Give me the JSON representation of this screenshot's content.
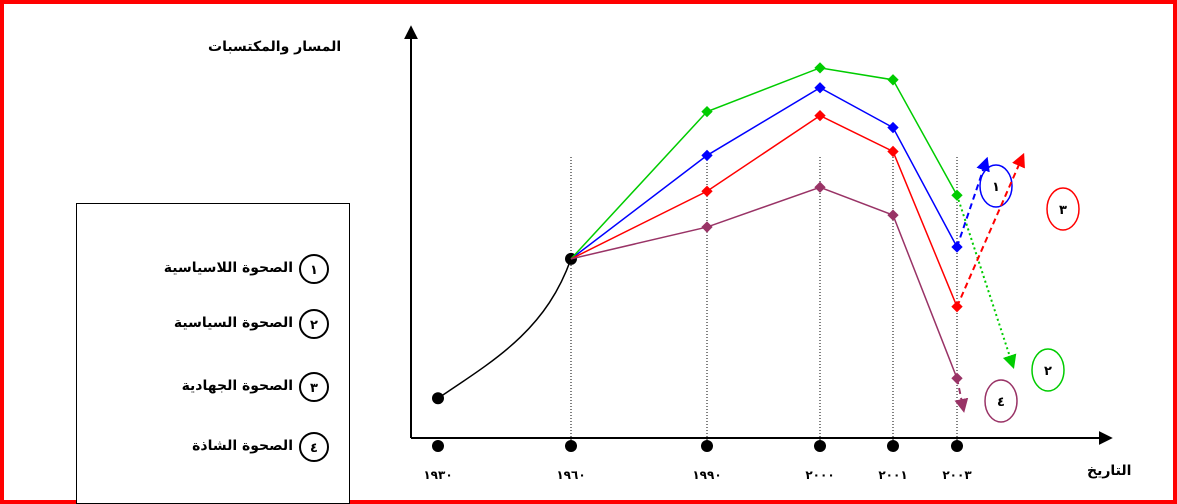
{
  "chart_data": {
    "type": "line",
    "ylabel": "المسار والمكتسبات",
    "xlabel": "التاريخ",
    "x_ticks": [
      "١٩٣٠",
      "١٩٦٠",
      "١٩٩٠",
      "٢٠٠٠",
      "٢٠٠١",
      "٢٠٠٣"
    ],
    "x_values": [
      1930,
      1960,
      1990,
      2000,
      2001,
      2003
    ],
    "ylim": [
      0,
      100
    ],
    "shared_start": [
      {
        "x": 1930,
        "y": 10
      },
      {
        "x": 1960,
        "y": 45
      }
    ],
    "series": [
      {
        "name": "الصحوة اللاسياسية",
        "number": "١",
        "color": "#0000ff",
        "points": [
          {
            "x": 1960,
            "y": 45
          },
          {
            "x": 1990,
            "y": 71
          },
          {
            "x": 2000,
            "y": 88
          },
          {
            "x": 2001,
            "y": 78
          },
          {
            "x": 2003,
            "y": 48
          }
        ],
        "trend": {
          "x": 2003.45,
          "y": 70
        }
      },
      {
        "name": "الصحوة السياسية",
        "number": "٢",
        "color": "#00cc00",
        "points": [
          {
            "x": 1960,
            "y": 45
          },
          {
            "x": 1990,
            "y": 82
          },
          {
            "x": 2000,
            "y": 93
          },
          {
            "x": 2001,
            "y": 90
          },
          {
            "x": 2003,
            "y": 61
          }
        ],
        "trend": {
          "x": 2003.85,
          "y": 18
        }
      },
      {
        "name": "الصحوة الجهادية",
        "number": "٣",
        "color": "#ff0000",
        "points": [
          {
            "x": 1960,
            "y": 45
          },
          {
            "x": 1990,
            "y": 62
          },
          {
            "x": 2000,
            "y": 81
          },
          {
            "x": 2001,
            "y": 72
          },
          {
            "x": 2003,
            "y": 33
          }
        ],
        "trend": {
          "x": 2004.0,
          "y": 71
        }
      },
      {
        "name": "الصحوة الشاذة",
        "number": "٤",
        "color": "#993366",
        "points": [
          {
            "x": 1960,
            "y": 45
          },
          {
            "x": 1990,
            "y": 53
          },
          {
            "x": 2000,
            "y": 63
          },
          {
            "x": 2001,
            "y": 56
          },
          {
            "x": 2003,
            "y": 15
          }
        ],
        "trend": {
          "x": 2003.1,
          "y": 7
        }
      }
    ]
  }
}
